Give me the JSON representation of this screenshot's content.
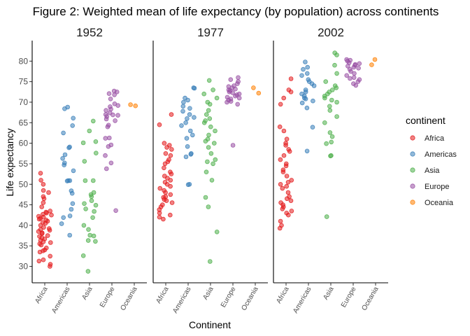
{
  "chart_data": {
    "type": "scatter",
    "title": "Figure 2: Weighted mean of life expectancy (by population) across continents",
    "xlabel": "Continent",
    "ylabel": "Life expectancy",
    "ylim": [
      26,
      85
    ],
    "yticks": [
      30,
      35,
      40,
      45,
      50,
      55,
      60,
      65,
      70,
      75,
      80
    ],
    "categories": [
      "Africa",
      "Americas",
      "Asia",
      "Europe",
      "Oceania"
    ],
    "legend": {
      "title": "continent",
      "placement": "right"
    },
    "grid": false,
    "colors": {
      "Africa": "#E41A1C",
      "Americas": "#377EB8",
      "Asia": "#4DAF4A",
      "Europe": "#984EA3",
      "Oceania": "#FF7F00"
    },
    "panels": [
      {
        "label": "1952",
        "series": [
          {
            "name": "Africa",
            "values": [
              30.0,
              30.5,
              31.3,
              31.6,
              32.5,
              33.5,
              33.8,
              34.0,
              34.5,
              35.2,
              35.5,
              35.8,
              36.0,
              36.3,
              36.7,
              37.0,
              37.3,
              37.5,
              38.0,
              38.2,
              38.5,
              38.8,
              39.0,
              39.2,
              39.5,
              40.0,
              40.5,
              40.7,
              41.0,
              41.3,
              41.5,
              41.7,
              42.0,
              42.2,
              42.5,
              42.7,
              43.0,
              43.2,
              43.5,
              44.5,
              45.5,
              46.5,
              47.0,
              48.0,
              48.5,
              50.0,
              51.0,
              52.7
            ]
          },
          {
            "name": "Americas",
            "values": [
              37.6,
              40.4,
              41.9,
              42.3,
              43.9,
              45.3,
              47.8,
              48.4,
              50.9,
              50.9,
              50.8,
              53.3,
              54.7,
              55.2,
              56.3,
              57.2,
              58.9,
              59.1,
              62.5,
              64.3,
              66.1,
              68.4,
              68.8
            ]
          },
          {
            "name": "Asia",
            "values": [
              28.8,
              32.6,
              36.1,
              36.3,
              37.4,
              37.6,
              39.0,
              40.0,
              41.9,
              43.4,
              44.0,
              44.9,
              45.3,
              46.0,
              47.0,
              47.5,
              48.0,
              50.9,
              50.9,
              55.6,
              57.6,
              60.1,
              60.4,
              63.0,
              65.4
            ]
          },
          {
            "name": "Europe",
            "values": [
              43.6,
              53.8,
              55.2,
              57.0,
              59.2,
              59.6,
              61.2,
              61.3,
              64.0,
              64.4,
              65.5,
              65.9,
              66.5,
              66.8,
              66.9,
              67.0,
              67.4,
              68.0,
              68.3,
              68.9,
              69.2,
              69.6,
              70.8,
              71.8,
              72.1,
              72.5,
              72.7
            ]
          },
          {
            "name": "Oceania",
            "values": [
              69.1,
              69.4
            ]
          }
        ]
      },
      {
        "label": "1977",
        "series": [
          {
            "name": "Africa",
            "values": [
              41.5,
              42.0,
              42.5,
              43.0,
              43.8,
              44.5,
              45.0,
              45.5,
              46.0,
              46.3,
              46.8,
              47.0,
              47.5,
              48.0,
              48.5,
              49.0,
              49.5,
              50.0,
              50.5,
              51.0,
              51.5,
              52.0,
              52.5,
              53.0,
              54.0,
              55.0,
              55.5,
              56.0,
              57.0,
              57.5,
              58.5,
              59.0,
              59.5,
              60.0,
              64.5,
              67.0
            ]
          },
          {
            "name": "Americas",
            "values": [
              49.9,
              50.0,
              56.7,
              57.3,
              57.5,
              59.2,
              61.2,
              62.0,
              63.0,
              64.3,
              65.0,
              66.0,
              66.3,
              67.0,
              67.8,
              68.5,
              69.0,
              70.0,
              70.5,
              71.0,
              73.4,
              73.5
            ]
          },
          {
            "name": "Asia",
            "values": [
              31.2,
              38.4,
              44.5,
              46.8,
              51.0,
              53.0,
              55.0,
              55.5,
              56.0,
              57.5,
              59.0,
              60.0,
              60.5,
              61.0,
              62.0,
              63.0,
              64.0,
              65.0,
              65.5,
              66.0,
              67.0,
              68.0,
              69.5,
              70.0,
              71.0,
              72.0,
              73.0,
              75.3
            ]
          },
          {
            "name": "Europe",
            "values": [
              59.5,
              69.5,
              70.0,
              70.2,
              70.5,
              70.8,
              71.0,
              71.2,
              71.5,
              71.8,
              72.0,
              72.3,
              72.5,
              72.8,
              73.0,
              73.2,
              73.5,
              73.8,
              74.0,
              74.5,
              75.0,
              75.5,
              76.0
            ]
          },
          {
            "name": "Oceania",
            "values": [
              72.2,
              73.5
            ]
          }
        ]
      },
      {
        "label": "2002",
        "series": [
          {
            "name": "Africa",
            "values": [
              39.3,
              40.0,
              41.0,
              42.5,
              43.0,
              43.5,
              44.0,
              44.5,
              45.0,
              45.5,
              46.0,
              46.5,
              47.0,
              48.0,
              49.0,
              49.5,
              50.0,
              50.5,
              51.0,
              52.0,
              53.0,
              53.5,
              54.5,
              55.0,
              56.0,
              57.0,
              58.0,
              58.5,
              59.5,
              60.0,
              61.0,
              63.0,
              64.0,
              69.5,
              71.0,
              72.5,
              73.0,
              75.7
            ]
          },
          {
            "name": "Americas",
            "values": [
              58.1,
              63.9,
              68.6,
              69.8,
              70.3,
              70.8,
              71.0,
              71.5,
              72.0,
              72.5,
              73.0,
              74.0,
              74.5,
              75.0,
              75.5,
              76.5,
              77.0,
              78.0,
              78.5,
              79.8
            ]
          },
          {
            "name": "Asia",
            "values": [
              42.1,
              56.9,
              57.0,
              59.9,
              60.3,
              61.6,
              62.6,
              65.0,
              66.5,
              68.0,
              69.0,
              70.0,
              70.5,
              71.0,
              71.5,
              72.0,
              72.5,
              73.0,
              73.5,
              74.0,
              75.0,
              77.0,
              79.0,
              81.5,
              82.0
            ]
          },
          {
            "name": "Europe",
            "values": [
              74.1,
              74.5,
              75.0,
              75.5,
              75.8,
              76.0,
              76.5,
              77.0,
              77.5,
              78.0,
              78.3,
              78.5,
              78.8,
              79.0,
              79.2,
              79.4,
              79.6,
              80.0,
              80.2,
              80.4
            ]
          },
          {
            "name": "Oceania",
            "values": [
              79.1,
              80.4
            ]
          }
        ]
      }
    ]
  }
}
